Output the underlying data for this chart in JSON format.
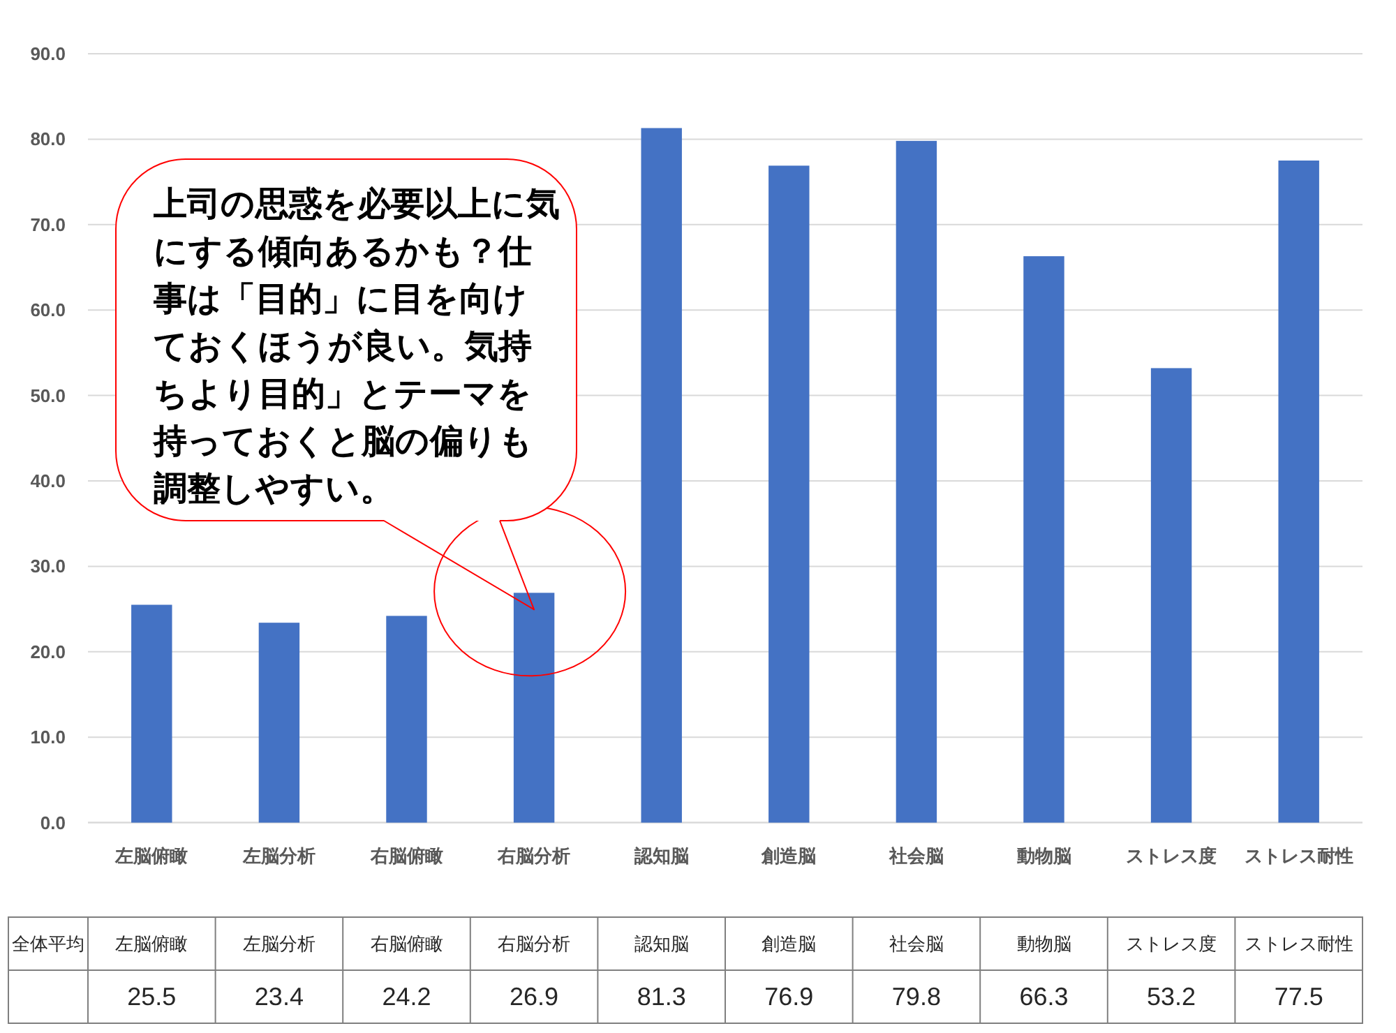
{
  "chart_data": {
    "type": "bar",
    "categories": [
      "左脳俯瞰",
      "左脳分析",
      "右脳俯瞰",
      "右脳分析",
      "認知脳",
      "創造脳",
      "社会脳",
      "動物脳",
      "ストレス度",
      "ストレス耐性"
    ],
    "series": [
      {
        "name": "全体平均",
        "color": "#4472c4",
        "values": [
          25.5,
          23.4,
          24.2,
          26.9,
          81.3,
          76.9,
          79.8,
          66.3,
          53.2,
          77.5
        ],
        "value_labels": [
          "25.5",
          "23.4",
          "24.2",
          "26.9",
          "81.3",
          "76.9",
          "79.8",
          "66.3",
          "53.2",
          "77.5"
        ]
      }
    ],
    "ylim": [
      0,
      90
    ],
    "yticks": [
      {
        "value": 0,
        "label": "0.0"
      },
      {
        "value": 10,
        "label": "10.0"
      },
      {
        "value": 20,
        "label": "20.0"
      },
      {
        "value": 30,
        "label": "30.0"
      },
      {
        "value": 40,
        "label": "40.0"
      },
      {
        "value": 50,
        "label": "50.0"
      },
      {
        "value": 60,
        "label": "60.0"
      },
      {
        "value": 70,
        "label": "70.0"
      },
      {
        "value": 80,
        "label": "80.0"
      },
      {
        "value": 90,
        "label": "90.0"
      }
    ],
    "grid": "y",
    "annotations": [
      {
        "text": "上司の思惑を必要以上に気にする傾向あるかも？仕事は「目的」に目を向けておくほうが良い。気持ちより目的」とテーマを持っておくと脳の偏りも調整しやすい。",
        "x": "右脳分析",
        "y": 26.9
      }
    ]
  }
}
